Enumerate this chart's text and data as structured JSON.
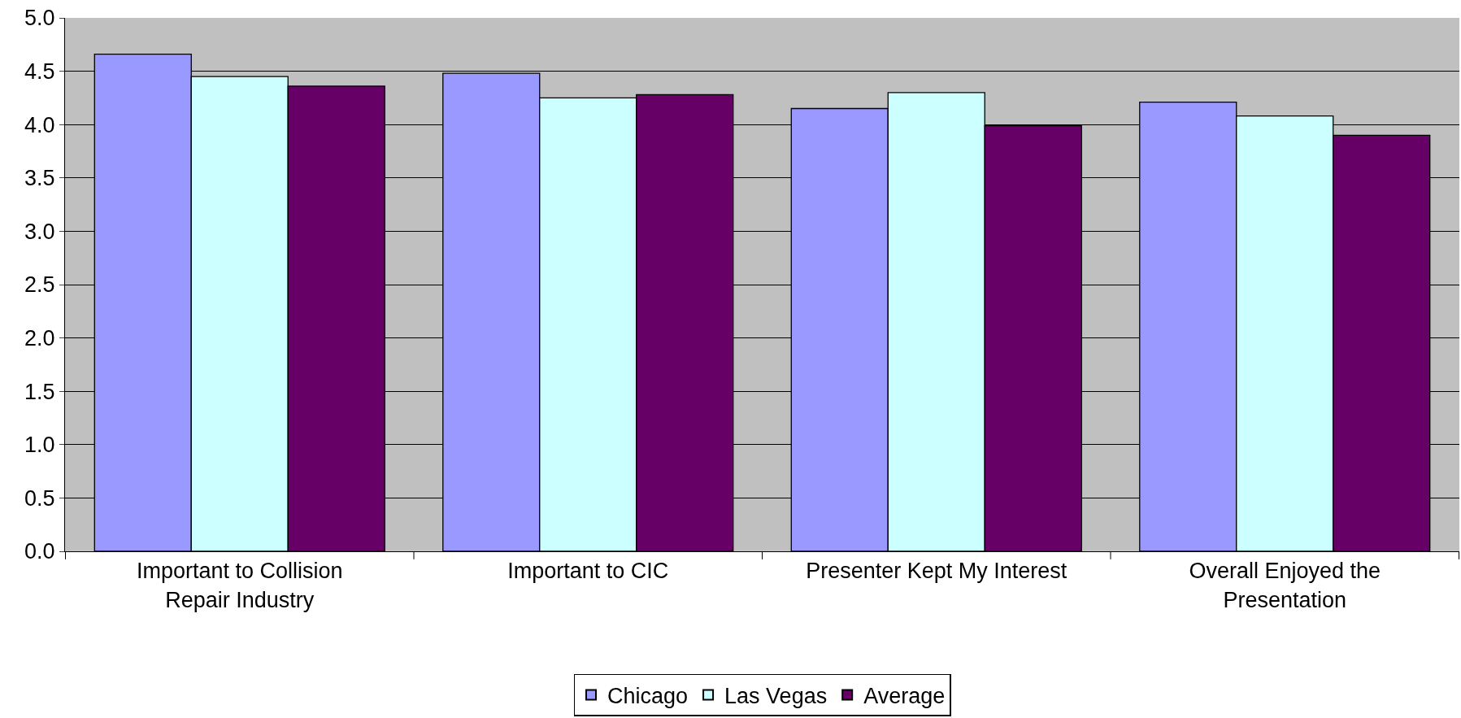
{
  "chart_data": {
    "type": "bar",
    "categories": [
      "Important to Collision\nRepair Industry",
      "Important to CIC",
      "Presenter Kept My Interest",
      "Overall Enjoyed the\nPresentation"
    ],
    "series": [
      {
        "name": "Chicago",
        "color": "#9999ff",
        "values": [
          4.66,
          4.48,
          4.15,
          4.21
        ]
      },
      {
        "name": "Las Vegas",
        "color": "#ccffff",
        "values": [
          4.45,
          4.25,
          4.3,
          4.08
        ]
      },
      {
        "name": "Average",
        "color": "#660066",
        "values": [
          4.36,
          4.28,
          3.99,
          3.9
        ]
      }
    ],
    "ylim": [
      0,
      5
    ],
    "yticks": [
      {
        "value": 0,
        "label": "0.0"
      },
      {
        "value": 0.5,
        "label": "0.5"
      },
      {
        "value": 1,
        "label": "1.0"
      },
      {
        "value": 1.5,
        "label": "1.5"
      },
      {
        "value": 2,
        "label": "2.0"
      },
      {
        "value": 2.5,
        "label": "2.5"
      },
      {
        "value": 3,
        "label": "3.0"
      },
      {
        "value": 3.5,
        "label": "3.5"
      },
      {
        "value": 4,
        "label": "4.0"
      },
      {
        "value": 4.5,
        "label": "4.5"
      },
      {
        "value": 5,
        "label": "5.0"
      }
    ],
    "grid": "y",
    "legend": "bottom"
  }
}
